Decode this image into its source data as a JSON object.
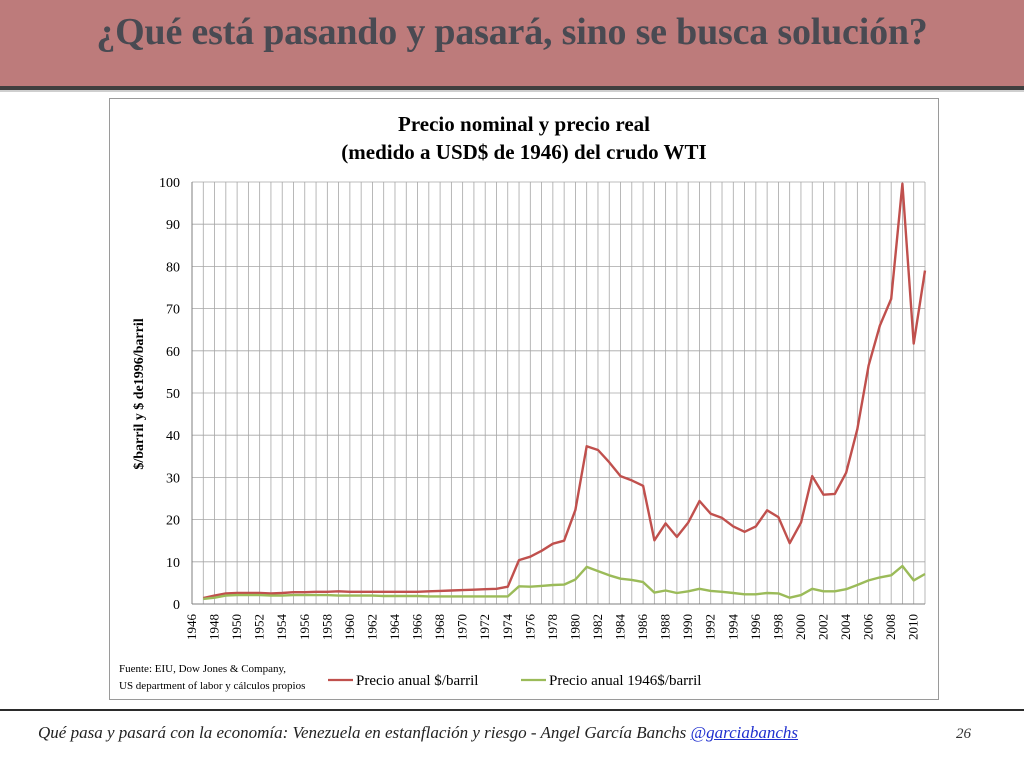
{
  "slide": {
    "title": "¿Qué está pasando y pasará, sino se busca solución?",
    "footer_text": "Qué pasa y pasará con la economía: Venezuela en estanflación y riesgo - Angel García Banchs ",
    "footer_link": "@garciabanchs",
    "page_number": "26"
  },
  "colors": {
    "header_bg": "#bd7b7b",
    "title_text": "#494a52",
    "series_nominal": "#c0504d",
    "series_real": "#9bbb59"
  },
  "chart_data": {
    "type": "line",
    "title_line1": "Precio nominal y precio real",
    "title_line2": "(medido a USD$ de 1946) del crudo WTI",
    "ylabel": "$/barril  y  $ de1996/barril",
    "xlabel": "",
    "ylim": [
      0,
      100
    ],
    "yticks": [
      "0",
      "10",
      "20",
      "30",
      "40",
      "50",
      "60",
      "70",
      "80",
      "90",
      "100"
    ],
    "xlim": [
      1946,
      2011
    ],
    "xticks": [
      "1946",
      "1948",
      "1950",
      "1952",
      "1954",
      "1956",
      "1958",
      "1960",
      "1962",
      "1964",
      "1966",
      "1968",
      "1970",
      "1972",
      "1974",
      "1976",
      "1978",
      "1980",
      "1982",
      "1984",
      "1986",
      "1988",
      "1990",
      "1992",
      "1994",
      "1996",
      "1998",
      "2000",
      "2002",
      "2004",
      "2006",
      "2008",
      "2010"
    ],
    "grid": "vertical and horizontal",
    "legend_position": "bottom",
    "source_line1": "Fuente: EIU, Dow Jones & Company,",
    "source_line2": "US department of labor y cálculos propios",
    "series": [
      {
        "name": "Precio anual $/barril",
        "x": [
          1947,
          1948,
          1949,
          1950,
          1951,
          1952,
          1953,
          1954,
          1955,
          1956,
          1957,
          1958,
          1959,
          1960,
          1961,
          1962,
          1963,
          1964,
          1965,
          1966,
          1967,
          1968,
          1969,
          1970,
          1971,
          1972,
          1973,
          1974,
          1975,
          1976,
          1977,
          1978,
          1979,
          1980,
          1981,
          1982,
          1983,
          1984,
          1985,
          1986,
          1987,
          1988,
          1989,
          1990,
          1991,
          1992,
          1993,
          1994,
          1995,
          1996,
          1997,
          1998,
          1999,
          2000,
          2001,
          2002,
          2003,
          2004,
          2005,
          2006,
          2007,
          2008,
          2009,
          2010,
          2011
        ],
        "values": [
          1.4,
          2.0,
          2.5,
          2.6,
          2.6,
          2.6,
          2.5,
          2.6,
          2.8,
          2.8,
          2.9,
          2.9,
          3.0,
          2.9,
          2.9,
          2.9,
          2.9,
          2.9,
          2.9,
          2.9,
          3.0,
          3.1,
          3.2,
          3.3,
          3.4,
          3.5,
          3.6,
          4.1,
          10.4,
          11.2,
          12.6,
          14.3,
          15.0,
          22.3,
          37.4,
          36.5,
          33.6,
          30.3,
          29.3,
          28.0,
          15.1,
          19.1,
          15.9,
          19.3,
          24.4,
          21.4,
          20.4,
          18.4,
          17.1,
          18.4,
          22.2,
          20.6,
          14.4,
          19.3,
          30.3,
          25.9,
          26.1,
          31.1,
          41.4,
          56.5,
          66.0,
          72.3,
          99.6,
          61.7,
          79.0
        ]
      },
      {
        "name": "Precio anual 1946$/barril",
        "x": [
          1947,
          1948,
          1949,
          1950,
          1951,
          1952,
          1953,
          1954,
          1955,
          1956,
          1957,
          1958,
          1959,
          1960,
          1961,
          1962,
          1963,
          1964,
          1965,
          1966,
          1967,
          1968,
          1969,
          1970,
          1971,
          1972,
          1973,
          1974,
          1975,
          1976,
          1977,
          1978,
          1979,
          1980,
          1981,
          1982,
          1983,
          1984,
          1985,
          1986,
          1987,
          1988,
          1989,
          1990,
          1991,
          1992,
          1993,
          1994,
          1995,
          1996,
          1997,
          1998,
          1999,
          2000,
          2001,
          2002,
          2003,
          2004,
          2005,
          2006,
          2007,
          2008,
          2009,
          2010,
          2011
        ],
        "values": [
          1.2,
          1.5,
          2.0,
          2.1,
          2.1,
          2.1,
          2.0,
          2.0,
          2.1,
          2.1,
          2.1,
          2.1,
          2.0,
          2.0,
          2.0,
          2.0,
          1.9,
          1.9,
          1.9,
          1.9,
          1.8,
          1.8,
          1.8,
          1.8,
          1.8,
          1.8,
          1.8,
          1.8,
          4.2,
          4.1,
          4.3,
          4.5,
          4.6,
          5.8,
          8.8,
          7.8,
          6.8,
          6.0,
          5.7,
          5.2,
          2.7,
          3.2,
          2.6,
          3.0,
          3.6,
          3.1,
          2.9,
          2.6,
          2.3,
          2.3,
          2.6,
          2.5,
          1.5,
          2.1,
          3.6,
          3.0,
          3.0,
          3.5,
          4.5,
          5.6,
          6.3,
          6.8,
          9.0,
          5.6,
          7.1
        ]
      }
    ]
  }
}
